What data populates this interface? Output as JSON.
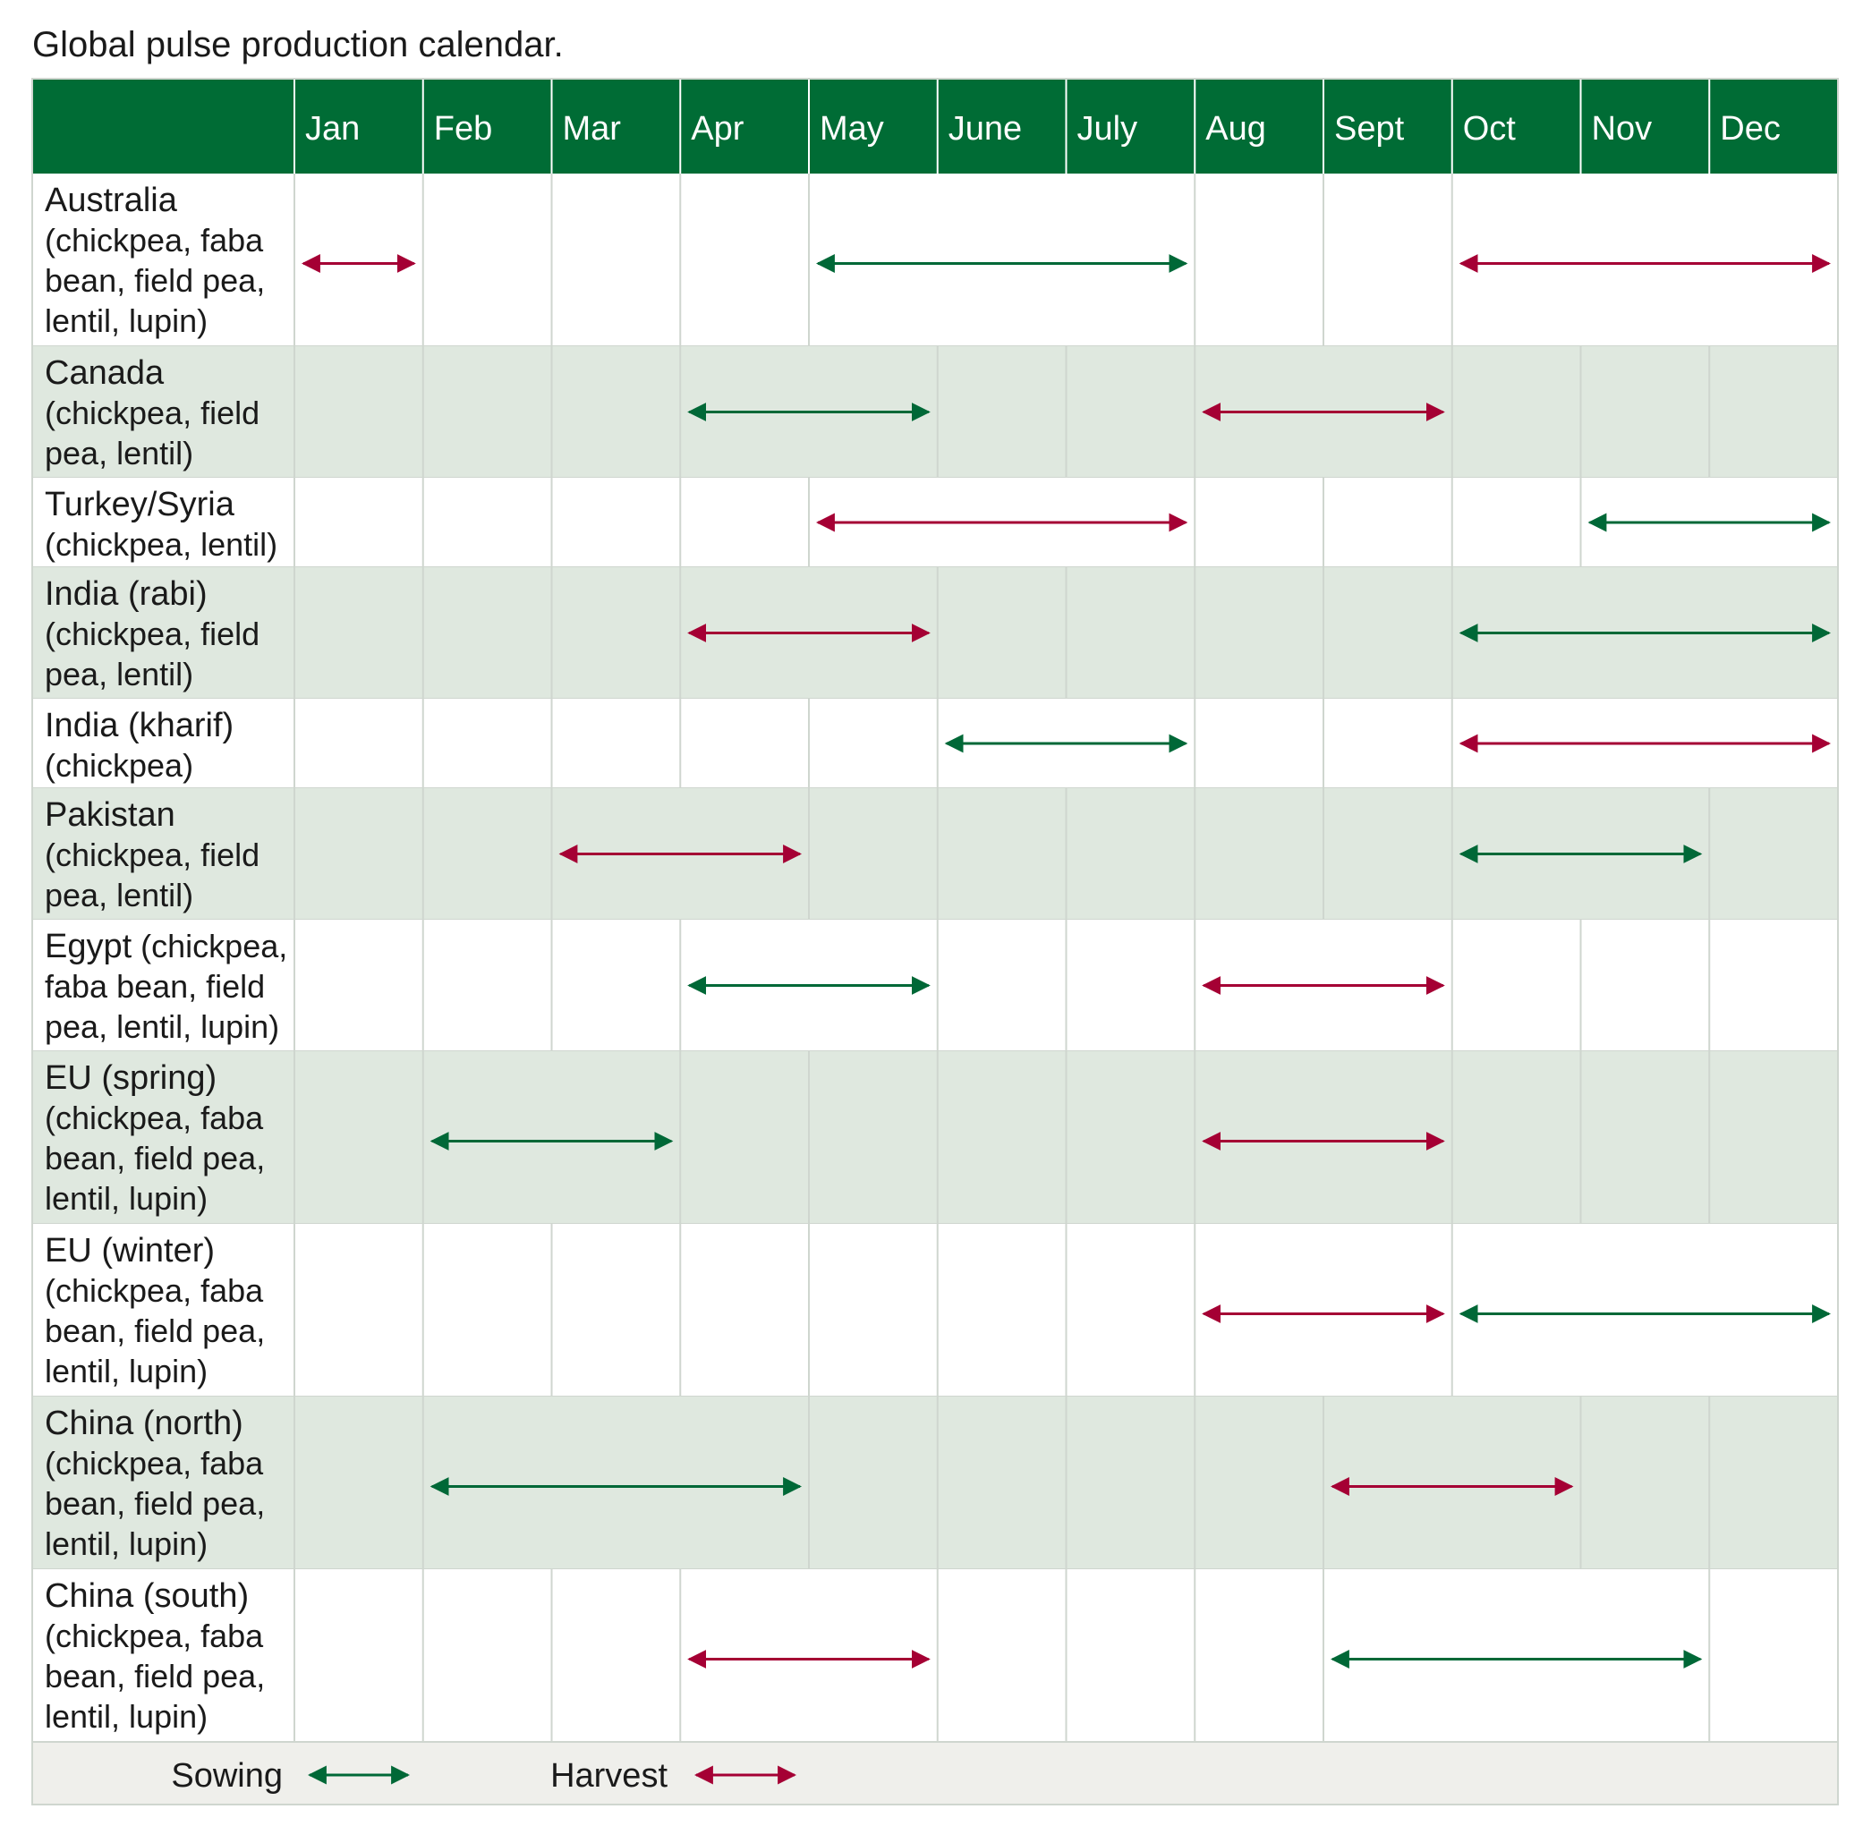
{
  "title": "Global pulse production calendar.",
  "colors": {
    "header_bg": "#006c35",
    "row_shade": "#dfe8df",
    "legend_bg": "#efefeb",
    "grid": "#cfd6cf",
    "sowing": "#006837",
    "harvest": "#a50034"
  },
  "chart_data": {
    "type": "table",
    "months": [
      "Jan",
      "Feb",
      "Mar",
      "Apr",
      "May",
      "June",
      "July",
      "Aug",
      "Sept",
      "Oct",
      "Nov",
      "Dec"
    ],
    "rows": [
      {
        "name": "Australia",
        "detail": "(chickpea, faba bean, field pea, lentil, lupin)",
        "lines": [
          [
            "Australia",
            ""
          ],
          [
            "(chickpea, faba",
            ""
          ],
          [
            "bean, field pea,",
            ""
          ],
          [
            "lentil, lupin)",
            ""
          ]
        ],
        "periods": [
          {
            "type": "Harvest",
            "start": "Jan",
            "end": "Jan"
          },
          {
            "type": "Sowing",
            "start": "May",
            "end": "July"
          },
          {
            "type": "Harvest",
            "start": "Oct",
            "end": "Dec"
          }
        ]
      },
      {
        "name": "Canada",
        "detail": "(chickpea, field pea, lentil)",
        "lines": [
          [
            "Canada",
            ""
          ],
          [
            "(chickpea, field",
            ""
          ],
          [
            "pea, lentil)",
            ""
          ]
        ],
        "periods": [
          {
            "type": "Sowing",
            "start": "Apr",
            "end": "May"
          },
          {
            "type": "Harvest",
            "start": "Aug",
            "end": "Sept"
          }
        ]
      },
      {
        "name": "Turkey/Syria",
        "detail": "(chickpea, lentil)",
        "lines": [
          [
            "Turkey/Syria",
            ""
          ],
          [
            "(chickpea, lentil)",
            ""
          ]
        ],
        "periods": [
          {
            "type": "Harvest",
            "start": "May",
            "end": "July"
          },
          {
            "type": "Sowing",
            "start": "Nov",
            "end": "Dec"
          }
        ]
      },
      {
        "name": "India (rabi)",
        "detail": "(chickpea, field pea, lentil)",
        "lines": [
          [
            "India (rabi)",
            ""
          ],
          [
            "(chickpea, field",
            ""
          ],
          [
            "pea, lentil)",
            ""
          ]
        ],
        "periods": [
          {
            "type": "Harvest",
            "start": "Apr",
            "end": "May"
          },
          {
            "type": "Sowing",
            "start": "Oct",
            "end": "Dec"
          }
        ]
      },
      {
        "name": "India (kharif)",
        "detail": "(chickpea)",
        "lines": [
          [
            "India (kharif)",
            ""
          ],
          [
            "(chickpea)",
            ""
          ]
        ],
        "periods": [
          {
            "type": "Sowing",
            "start": "June",
            "end": "July"
          },
          {
            "type": "Harvest",
            "start": "Oct",
            "end": "Dec"
          }
        ]
      },
      {
        "name": "Pakistan",
        "detail": "(chickpea, field pea, lentil)",
        "lines": [
          [
            "Pakistan",
            ""
          ],
          [
            "(chickpea, field",
            ""
          ],
          [
            "pea, lentil)",
            ""
          ]
        ],
        "periods": [
          {
            "type": "Harvest",
            "start": "Mar",
            "end": "Apr"
          },
          {
            "type": "Sowing",
            "start": "Oct",
            "end": "Nov"
          }
        ]
      },
      {
        "name": "Egypt",
        "detail": "(chickpea, faba bean, field pea, lentil, lupin)",
        "lines": [
          [
            "Egypt",
            " (chickpea,"
          ],
          [
            "faba bean, field",
            ""
          ],
          [
            "pea, lentil, lupin)",
            ""
          ]
        ],
        "periods": [
          {
            "type": "Sowing",
            "start": "Apr",
            "end": "May"
          },
          {
            "type": "Harvest",
            "start": "Aug",
            "end": "Sept"
          }
        ]
      },
      {
        "name": "EU (spring)",
        "detail": "(chickpea, faba bean, field pea, lentil, lupin)",
        "lines": [
          [
            "EU (spring)",
            ""
          ],
          [
            "(chickpea, faba",
            ""
          ],
          [
            "bean, field pea,",
            ""
          ],
          [
            "lentil, lupin)",
            ""
          ]
        ],
        "periods": [
          {
            "type": "Sowing",
            "start": "Feb",
            "end": "Mar"
          },
          {
            "type": "Harvest",
            "start": "Aug",
            "end": "Sept"
          }
        ]
      },
      {
        "name": "EU (winter)",
        "detail": "(chickpea, faba bean, field pea, lentil, lupin)",
        "lines": [
          [
            "EU (winter)",
            ""
          ],
          [
            "(chickpea, faba",
            ""
          ],
          [
            "bean, field pea,",
            ""
          ],
          [
            "lentil, lupin)",
            ""
          ]
        ],
        "periods": [
          {
            "type": "Harvest",
            "start": "Aug",
            "end": "Sept"
          },
          {
            "type": "Sowing",
            "start": "Oct",
            "end": "Dec"
          }
        ]
      },
      {
        "name": "China (north)",
        "detail": "(chickpea, faba bean, field pea, lentil, lupin)",
        "lines": [
          [
            "China (north)",
            ""
          ],
          [
            "(chickpea, faba",
            ""
          ],
          [
            "bean, field pea,",
            ""
          ],
          [
            "lentil, lupin)",
            ""
          ]
        ],
        "periods": [
          {
            "type": "Sowing",
            "start": "Feb",
            "end": "Apr"
          },
          {
            "type": "Harvest",
            "start": "Sept",
            "end": "Oct"
          }
        ]
      },
      {
        "name": "China (south)",
        "detail": "(chickpea, faba bean, field pea, lentil, lupin)",
        "lines": [
          [
            "China (south)",
            ""
          ],
          [
            "(chickpea, faba",
            ""
          ],
          [
            "bean, field pea,",
            ""
          ],
          [
            "lentil, lupin)",
            ""
          ]
        ],
        "periods": [
          {
            "type": "Harvest",
            "start": "Apr",
            "end": "May"
          },
          {
            "type": "Sowing",
            "start": "Sept",
            "end": "Nov"
          }
        ]
      }
    ],
    "legend": [
      {
        "label": "Sowing",
        "type": "Sowing"
      },
      {
        "label": "Harvest",
        "type": "Harvest"
      }
    ]
  }
}
